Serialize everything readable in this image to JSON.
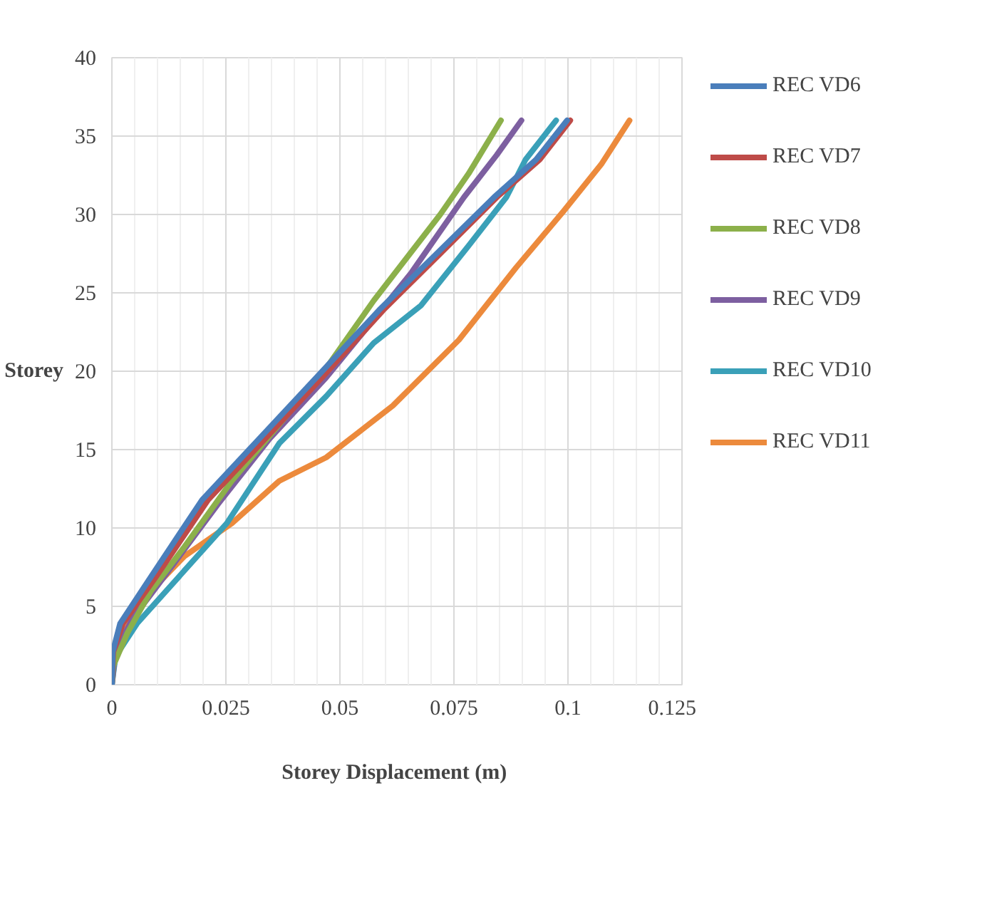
{
  "chart_data": {
    "type": "line",
    "xlabel": "Storey Displacement  (m)",
    "ylabel": "Storey",
    "xlim": [
      0,
      0.125
    ],
    "xticks": [
      0,
      0.025,
      0.05,
      0.075,
      0.1,
      0.125
    ],
    "ylim": [
      0,
      40
    ],
    "yticks": [
      0,
      5,
      10,
      15,
      20,
      25,
      30,
      35,
      40
    ],
    "grid": true,
    "legend": "right",
    "marker": "none",
    "line_style": "solid",
    "series": [
      {
        "name": "REC VD6",
        "color": "#4a7ebb",
        "x": [
          0,
          0.0002,
          0.0018,
          0.0086,
          0.0198,
          0.0333,
          0.0458,
          0.0586,
          0.0712,
          0.0838,
          0.093,
          0.0998
        ],
        "values": [
          0,
          2.1,
          3.9,
          6.9,
          11.8,
          16,
          19.9,
          23.9,
          27.5,
          31.1,
          33.5,
          36
        ]
      },
      {
        "name": "REC VD7",
        "color": "#be4b48",
        "x": [
          0,
          0.0003,
          0.0024,
          0.0097,
          0.0211,
          0.0346,
          0.047,
          0.0595,
          0.072,
          0.0844,
          0.0938,
          0.1005
        ],
        "values": [
          0,
          2.1,
          3.9,
          6.9,
          11.8,
          16,
          19.9,
          23.9,
          27.5,
          31.1,
          33.5,
          36
        ]
      },
      {
        "name": "REC VD8",
        "color": "#8cb04a",
        "x": [
          0,
          0.0003,
          0.0034,
          0.0086,
          0.0159,
          0.0263,
          0.0367,
          0.047,
          0.0574,
          0.072,
          0.0782,
          0.0853
        ],
        "values": [
          0,
          1.2,
          3.3,
          6,
          8.8,
          13,
          16.6,
          20.2,
          24.5,
          30,
          32.6,
          36
        ]
      },
      {
        "name": "REC VD9",
        "color": "#7d5fa0",
        "x": [
          0,
          0.0008,
          0.0045,
          0.0107,
          0.0232,
          0.0346,
          0.047,
          0.0574,
          0.0657,
          0.0772,
          0.0844,
          0.0898
        ],
        "values": [
          0,
          2.1,
          4.2,
          6.6,
          11.5,
          15.7,
          19.6,
          23.3,
          26.3,
          31.1,
          33.8,
          36
        ]
      },
      {
        "name": "REC VD10",
        "color": "#3aa0b8",
        "x": [
          0,
          0.0008,
          0.0055,
          0.0138,
          0.0252,
          0.0367,
          0.047,
          0.0574,
          0.0678,
          0.0782,
          0.0865,
          0.0907,
          0.0974
        ],
        "values": [
          0,
          1.8,
          3.9,
          6.6,
          10.3,
          15.4,
          18.4,
          21.8,
          24.2,
          28,
          31.1,
          33.5,
          36
        ]
      },
      {
        "name": "REC VD11",
        "color": "#ec8a3c",
        "x": [
          0,
          0.0001,
          0.0013,
          0.0076,
          0.0159,
          0.0263,
          0.0367,
          0.047,
          0.0616,
          0.0761,
          0.0886,
          0.099,
          0.1073,
          0.1135
        ],
        "values": [
          0,
          0.9,
          2.7,
          5.7,
          8.2,
          10.3,
          13,
          14.5,
          17.8,
          22,
          26.6,
          30.2,
          33.2,
          36
        ]
      }
    ]
  }
}
